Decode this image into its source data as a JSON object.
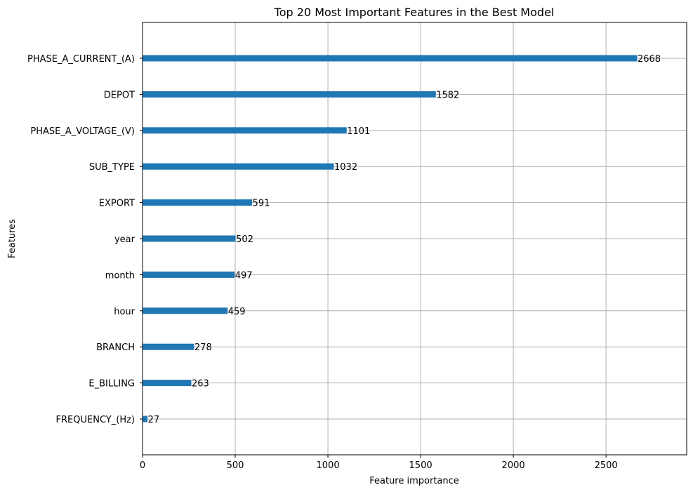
{
  "chart_data": {
    "type": "bar",
    "orientation": "horizontal",
    "title": "Top 20 Most Important Features in the Best Model",
    "xlabel": "Feature importance",
    "ylabel": "Features",
    "xlim": [
      0,
      2935
    ],
    "xticks": [
      0,
      500,
      1000,
      1500,
      2000,
      2500
    ],
    "grid": true,
    "categories": [
      "PHASE_A_CURRENT_(A)",
      "DEPOT",
      "PHASE_A_VOLTAGE_(V)",
      "SUB_TYPE",
      "EXPORT",
      "year",
      "month",
      "hour",
      "BRANCH",
      "E_BILLING",
      "FREQUENCY_(Hz)"
    ],
    "values": [
      2668,
      1582,
      1101,
      1032,
      591,
      502,
      497,
      459,
      278,
      263,
      27
    ],
    "value_labels": [
      "2668",
      "1582",
      "1101",
      "1032",
      "591",
      "502",
      "497",
      "459",
      "278",
      "263",
      "27"
    ],
    "bar_color": "#1f77b4",
    "grid_color": "#b0b0b0"
  }
}
